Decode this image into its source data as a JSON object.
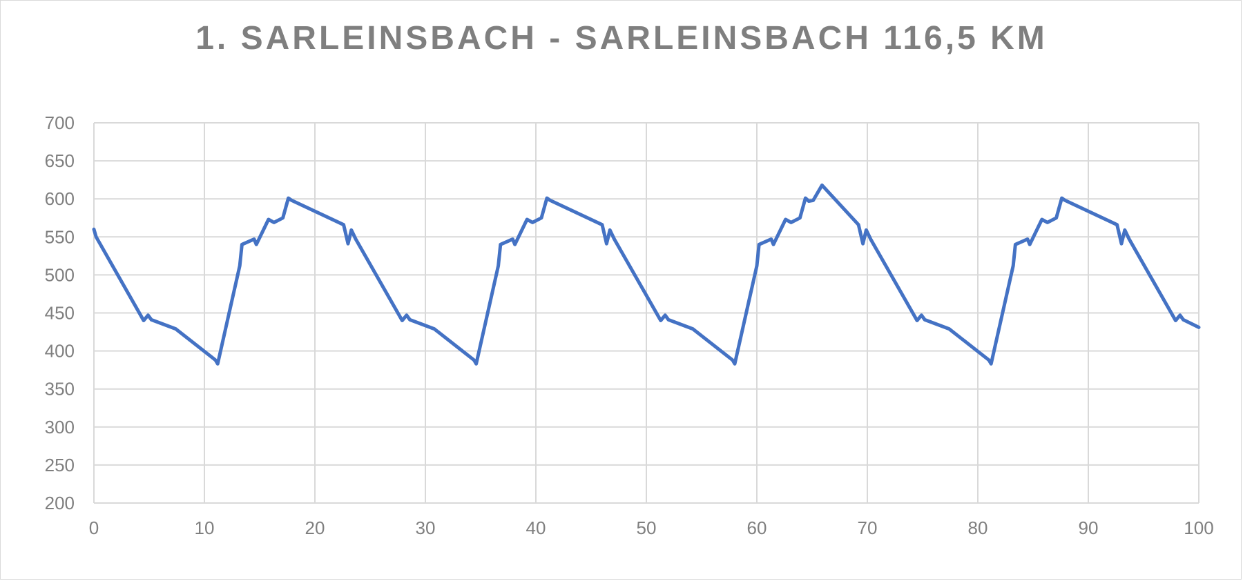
{
  "chart_data": {
    "type": "line",
    "title": "1. SARLEINSBACH - SARLEINSBACH 116,5 KM",
    "xlabel": "",
    "ylabel": "",
    "xlim": [
      0,
      100
    ],
    "ylim": [
      200,
      700
    ],
    "x_ticks": [
      0,
      10,
      20,
      30,
      40,
      50,
      60,
      70,
      80,
      90,
      100
    ],
    "y_ticks": [
      200,
      250,
      300,
      350,
      400,
      450,
      500,
      550,
      600,
      650,
      700
    ],
    "grid": true,
    "legend": "none",
    "series": [
      {
        "color": "#4472c4",
        "points": [
          [
            0,
            560
          ],
          [
            0.2,
            550
          ],
          [
            4.5,
            440
          ],
          [
            4.9,
            447
          ],
          [
            5.2,
            441
          ],
          [
            7.4,
            429
          ],
          [
            11,
            388
          ],
          [
            11.2,
            383
          ],
          [
            13.2,
            512
          ],
          [
            13.4,
            540
          ],
          [
            14.5,
            547
          ],
          [
            14.7,
            540
          ],
          [
            15.8,
            573
          ],
          [
            16.3,
            569
          ],
          [
            17.1,
            575
          ],
          [
            17.6,
            601
          ],
          [
            17.9,
            598
          ],
          [
            22.6,
            566
          ],
          [
            23,
            541
          ],
          [
            23.3,
            559
          ],
          [
            23.7,
            547
          ],
          [
            27.9,
            440
          ],
          [
            28.3,
            447
          ],
          [
            28.6,
            441
          ],
          [
            30.8,
            429
          ],
          [
            34.4,
            388
          ],
          [
            34.6,
            383
          ],
          [
            36.6,
            512
          ],
          [
            36.8,
            540
          ],
          [
            37.9,
            547
          ],
          [
            38.1,
            540
          ],
          [
            39.2,
            573
          ],
          [
            39.7,
            569
          ],
          [
            40.5,
            575
          ],
          [
            41,
            601
          ],
          [
            41.3,
            598
          ],
          [
            46,
            566
          ],
          [
            46.4,
            541
          ],
          [
            46.7,
            559
          ],
          [
            47.1,
            547
          ],
          [
            51.3,
            440
          ],
          [
            51.7,
            447
          ],
          [
            52,
            441
          ],
          [
            54.2,
            429
          ],
          [
            57.8,
            388
          ],
          [
            58,
            383
          ],
          [
            60,
            512
          ],
          [
            60.2,
            540
          ],
          [
            61.3,
            547
          ],
          [
            61.5,
            540
          ],
          [
            62.6,
            573
          ],
          [
            63.1,
            569
          ],
          [
            63.9,
            575
          ],
          [
            64.4,
            601
          ],
          [
            64.7,
            597
          ],
          [
            65.1,
            598
          ],
          [
            65.9,
            618
          ],
          [
            69.2,
            566
          ],
          [
            69.6,
            541
          ],
          [
            69.9,
            559
          ],
          [
            70.3,
            547
          ],
          [
            74.5,
            440
          ],
          [
            74.9,
            447
          ],
          [
            75.2,
            441
          ],
          [
            77.4,
            429
          ],
          [
            81,
            388
          ],
          [
            81.2,
            383
          ],
          [
            83.2,
            512
          ],
          [
            83.4,
            540
          ],
          [
            84.5,
            547
          ],
          [
            84.7,
            540
          ],
          [
            85.8,
            573
          ],
          [
            86.3,
            569
          ],
          [
            87.1,
            575
          ],
          [
            87.6,
            601
          ],
          [
            87.9,
            598
          ],
          [
            92.6,
            566
          ],
          [
            93,
            541
          ],
          [
            93.3,
            559
          ],
          [
            93.7,
            547
          ],
          [
            97.9,
            440
          ],
          [
            98.3,
            447
          ],
          [
            98.6,
            441
          ],
          [
            100,
            431
          ]
        ]
      }
    ]
  }
}
